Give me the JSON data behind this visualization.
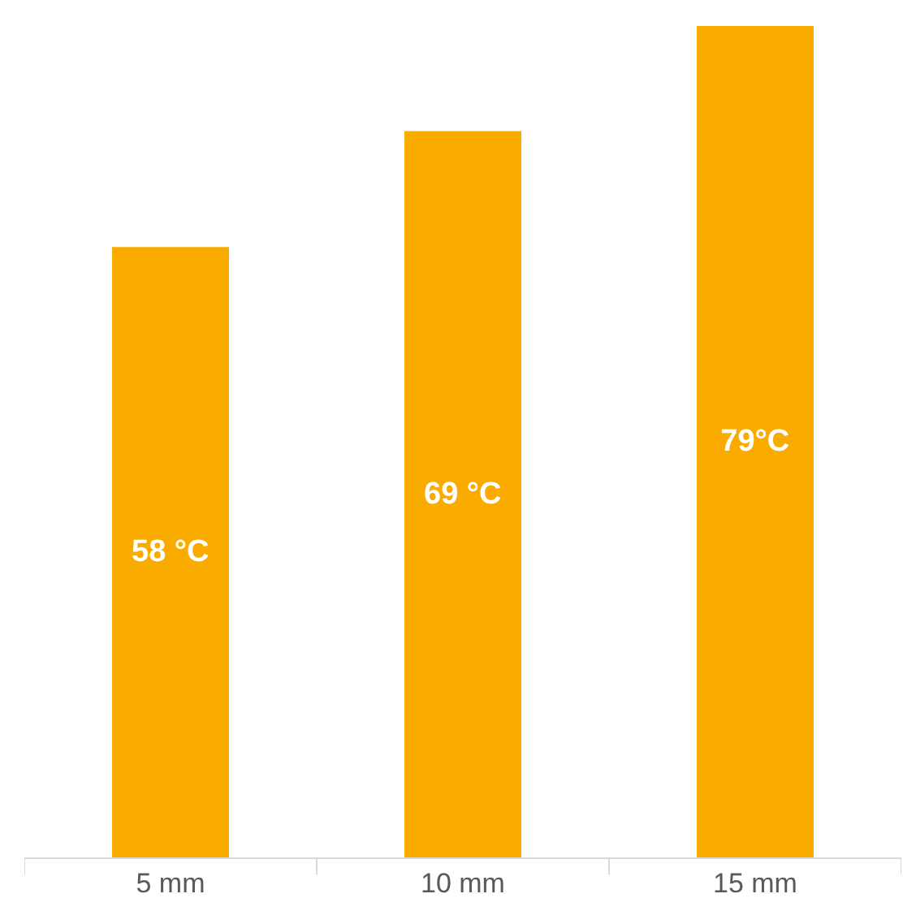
{
  "chart_data": {
    "type": "bar",
    "categories": [
      "5 mm",
      "10 mm",
      "15 mm"
    ],
    "values": [
      58,
      69,
      79
    ],
    "value_labels": [
      "58 °C",
      "69 °C",
      "79°C"
    ],
    "color": "#f9ab00",
    "ylim": [
      0,
      81
    ]
  }
}
